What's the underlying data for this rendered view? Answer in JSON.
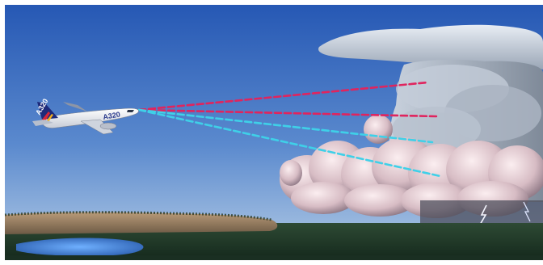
{
  "aircraft": {
    "tail_text": "A320",
    "fuselage_text": "A320"
  },
  "radar_beams": {
    "count_red": 2,
    "count_cyan": 2,
    "red_color": "#e0245e",
    "cyan_color": "#3fd0e8"
  },
  "palette": {
    "sky_top": "#2a5fb8",
    "sky_bottom": "#a8c4e2",
    "cloud_light": "#f2e6ea",
    "cloud_shadow": "#8a7f8f",
    "ground_dark": "#1d3a2a",
    "water": "#4a8ad8",
    "lightning": "#f4f6ff"
  },
  "icons": {
    "aircraft": "airplane-icon",
    "storm": "thunderstorm-cloud-icon",
    "lightning": "lightning-bolt-icon"
  }
}
